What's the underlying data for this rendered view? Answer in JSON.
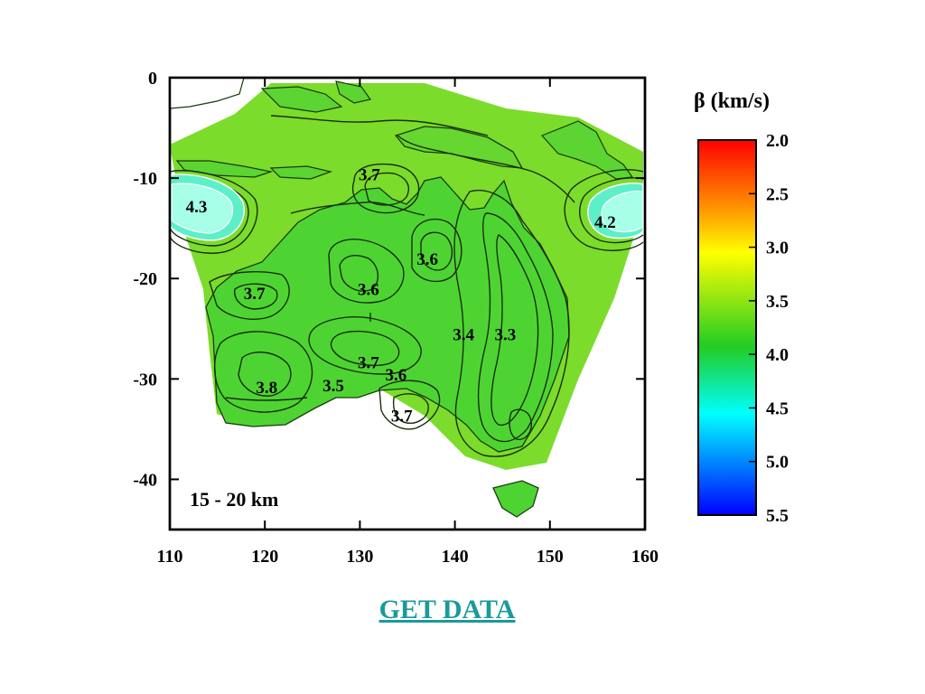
{
  "map": {
    "depth_label": "15 - 20 km",
    "x_ticks": [
      "110",
      "120",
      "130",
      "140",
      "150",
      "160"
    ],
    "y_ticks": [
      "0",
      "-10",
      "-20",
      "-30",
      "-40"
    ],
    "x_range": [
      110,
      160
    ],
    "y_range": [
      -45,
      0
    ],
    "contour_labels": [
      {
        "text": "4.3",
        "lon": 112.8,
        "lat": -12.8
      },
      {
        "text": "3.7",
        "lon": 131.0,
        "lat": -9.6
      },
      {
        "text": "4.2",
        "lon": 155.8,
        "lat": -14.3
      },
      {
        "text": "3.6",
        "lon": 137.1,
        "lat": -18.0
      },
      {
        "text": "3.7",
        "lon": 118.9,
        "lat": -21.4
      },
      {
        "text": "3.6",
        "lon": 130.9,
        "lat": -21.0
      },
      {
        "text": "3.4",
        "lon": 140.9,
        "lat": -25.5
      },
      {
        "text": "3.3",
        "lon": 145.3,
        "lat": -25.5
      },
      {
        "text": "3.7",
        "lon": 130.9,
        "lat": -28.3
      },
      {
        "text": "3.6",
        "lon": 133.8,
        "lat": -29.5
      },
      {
        "text": "3.5",
        "lon": 127.2,
        "lat": -30.6
      },
      {
        "text": "3.8",
        "lon": 120.2,
        "lat": -30.8
      },
      {
        "text": "3.7",
        "lon": 134.4,
        "lat": -33.6
      }
    ]
  },
  "legend": {
    "title": "β (km/s)",
    "ticks": [
      "2.0",
      "2.5",
      "3.0",
      "3.5",
      "4.0",
      "4.5",
      "5.0",
      "5.5"
    ],
    "colors": [
      "#ff0000",
      "#ffa500",
      "#ffff00",
      "#22cc22",
      "#00ffff",
      "#0000ff"
    ]
  },
  "link": {
    "label": "GET DATA"
  }
}
